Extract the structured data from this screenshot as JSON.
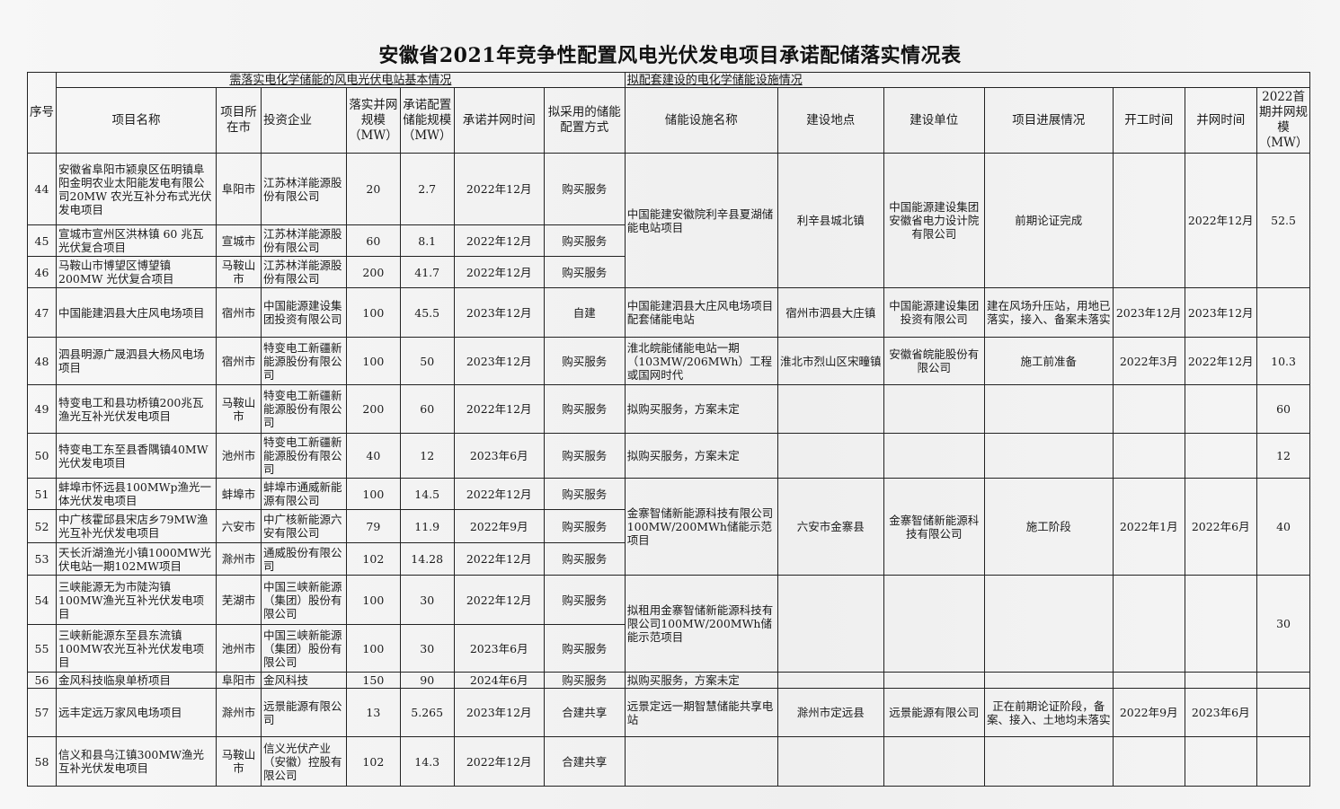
{
  "title": "安徽省2021年竞争性配置风电光伏发电项目承诺配储落实情况表",
  "header": {
    "group_left": "需落实电化学储能的风电光伏电站基本情况",
    "group_right": "拟配套建设的电化学储能设施情况",
    "col_no": "序号",
    "col_name": "项目名称",
    "col_city": "项目所在市",
    "col_investor": "投资企业",
    "col_capacity": "落实并网规模（MW）",
    "col_storage": "承诺配置储能规模（MW）",
    "col_grid_time": "承诺并网时间",
    "col_method": "拟采用的储能配置方式",
    "col_facility": "储能设施名称",
    "col_location": "建设地点",
    "col_builder": "建设单位",
    "col_progress": "项目进展情况",
    "col_start": "开工时间",
    "col_grid": "并网时间",
    "col_scale": "2022首期并网规模（MW）"
  },
  "rows": [
    {
      "no": "44",
      "name": "安徽省阜阳市颍泉区伍明镇阜阳金明农业太阳能发电有限公司20MW 农光互补分布式光伏发电项目",
      "city": "阜阳市",
      "investor": "江苏林洋能源股份有限公司",
      "capacity": "20",
      "storage": "2.7",
      "grid_time": "2022年12月",
      "method": "购买服务"
    },
    {
      "no": "45",
      "name": "宣城市宣州区洪林镇 60 兆瓦光伏复合项目",
      "city": "宣城市",
      "investor": "江苏林洋能源股份有限公司",
      "capacity": "60",
      "storage": "8.1",
      "grid_time": "2022年12月",
      "method": "购买服务"
    },
    {
      "no": "46",
      "name": "马鞍山市博望区博望镇200MW 光伏复合项目",
      "city": "马鞍山市",
      "investor": "江苏林洋能源股份有限公司",
      "capacity": "200",
      "storage": "41.7",
      "grid_time": "2022年12月",
      "method": "购买服务"
    },
    {
      "no": "47",
      "name": "中国能建泗县大庄风电场项目",
      "city": "宿州市",
      "investor": "中国能源建设集团投资有限公司",
      "capacity": "100",
      "storage": "45.5",
      "grid_time": "2023年12月",
      "method": "自建"
    },
    {
      "no": "48",
      "name": "泗县明源广晟泗县大杨风电场项目",
      "city": "宿州市",
      "investor": "特变电工新疆新能源股份有限公司",
      "capacity": "100",
      "storage": "50",
      "grid_time": "2023年12月",
      "method": "购买服务"
    },
    {
      "no": "49",
      "name": "特变电工和县功桥镇200兆瓦渔光互补光伏发电项目",
      "city": "马鞍山市",
      "investor": "特变电工新疆新能源股份有限公司",
      "capacity": "200",
      "storage": "60",
      "grid_time": "2022年12月",
      "method": "购买服务"
    },
    {
      "no": "50",
      "name": "特变电工东至县香隅镇40MW光伏发电项目",
      "city": "池州市",
      "investor": "特变电工新疆新能源股份有限公司",
      "capacity": "40",
      "storage": "12",
      "grid_time": "2023年6月",
      "method": "购买服务"
    },
    {
      "no": "51",
      "name": "蚌埠市怀远县100MWp渔光一体光伏发电项目",
      "city": "蚌埠市",
      "investor": "蚌埠市通威新能源有限公司",
      "capacity": "100",
      "storage": "14.5",
      "grid_time": "2022年12月",
      "method": "购买服务"
    },
    {
      "no": "52",
      "name": "中广核霍邱县宋店乡79MW渔光互补光伏发电项目",
      "city": "六安市",
      "investor": "中广核新能源六安有限公司",
      "capacity": "79",
      "storage": "11.9",
      "grid_time": "2022年9月",
      "method": "购买服务"
    },
    {
      "no": "53",
      "name": "天长沂湖渔光小镇1000MW光伏电站一期102MW项目",
      "city": "滁州市",
      "investor": "通威股份有限公司",
      "capacity": "102",
      "storage": "14.28",
      "grid_time": "2022年12月",
      "method": "购买服务"
    },
    {
      "no": "54",
      "name": "三峡能源无为市陡沟镇100MW渔光互补光伏发电项目",
      "city": "芜湖市",
      "investor": "中国三峡新能源（集团）股份有限公司",
      "capacity": "100",
      "storage": "30",
      "grid_time": "2022年12月",
      "method": "购买服务"
    },
    {
      "no": "55",
      "name": "三峡新能源东至县东流镇100MW农光互补光伏发电项目",
      "city": "池州市",
      "investor": "中国三峡新能源（集团）股份有限公司",
      "capacity": "100",
      "storage": "30",
      "grid_time": "2023年6月",
      "method": "购买服务"
    },
    {
      "no": "56",
      "name": "金风科技临泉单桥项目",
      "city": "阜阳市",
      "investor": "金风科技",
      "capacity": "150",
      "storage": "90",
      "grid_time": "2024年6月",
      "method": "购买服务"
    },
    {
      "no": "57",
      "name": "远丰定远万家风电场项目",
      "city": "滁州市",
      "investor": "远景能源有限公司",
      "capacity": "13",
      "storage": "5.265",
      "grid_time": "2023年12月",
      "method": "合建共享"
    },
    {
      "no": "58",
      "name": "信义和县乌江镇300MW渔光互补光伏发电项目",
      "city": "马鞍山市",
      "investor": "信义光伏产业（安徽）控股有限公司",
      "capacity": "102",
      "storage": "14.3",
      "grid_time": "2022年12月",
      "method": "合建共享"
    }
  ],
  "facilities": [
    {
      "span": 3,
      "facility": "中国能建安徽院利辛县夏湖储能电站项目",
      "location": "利辛县城北镇",
      "builder": "中国能源建设集团安徽省电力设计院有限公司",
      "progress": "前期论证完成",
      "start": "",
      "grid": "2022年12月",
      "scale": "52.5"
    },
    {
      "span": 1,
      "facility": "中国能建泗县大庄风电场项目配套储能电站",
      "location": "宿州市泗县大庄镇",
      "builder": "中国能源建设集团投资有限公司",
      "progress": "建在风场升压站，用地已落实，接入、备案未落实",
      "start": "2023年12月",
      "grid": "2023年12月",
      "scale": ""
    },
    {
      "span": 1,
      "facility": "淮北皖能储能电站一期（103MW/206MWh）工程或国网时代",
      "location": "淮北市烈山区宋疃镇",
      "builder": "安徽省皖能股份有限公司",
      "progress": "施工前准备",
      "start": "2022年3月",
      "grid": "2022年12月",
      "scale": "10.3"
    },
    {
      "span": 1,
      "facility": "拟购买服务，方案未定",
      "location": "",
      "builder": "",
      "progress": "",
      "start": "",
      "grid": "",
      "scale": "60"
    },
    {
      "span": 1,
      "facility": "拟购买服务，方案未定",
      "location": "",
      "builder": "",
      "progress": "",
      "start": "",
      "grid": "",
      "scale": "12"
    },
    {
      "span": 3,
      "facility": "金寨智储新能源科技有限公司100MW/200MWh储能示范项目",
      "location": "六安市金寨县",
      "builder": "金寨智储新能源科技有限公司",
      "progress": "施工阶段",
      "start": "2022年1月",
      "grid": "2022年6月",
      "scale": "40"
    },
    {
      "span": 2,
      "facility": "拟租用金寨智储新能源科技有限公司100MW/200MWh储能示范项目",
      "location": "",
      "builder": "",
      "progress": "",
      "start": "",
      "grid": "",
      "scale": "30"
    },
    {
      "span": 1,
      "facility": "拟购买服务，方案未定",
      "location": "",
      "builder": "",
      "progress": "",
      "start": "",
      "grid": "",
      "scale": ""
    },
    {
      "span": 1,
      "facility": "远景定远一期智慧储能共享电站",
      "location": "滁州市定远县",
      "builder": "远景能源有限公司",
      "progress": "正在前期论证阶段，备案、接入、土地均未落实",
      "start": "2022年9月",
      "grid": "2023年6月",
      "scale": ""
    },
    {
      "span": 1,
      "facility": "",
      "location": "",
      "builder": "",
      "progress": "",
      "start": "",
      "grid": "",
      "scale": ""
    }
  ]
}
